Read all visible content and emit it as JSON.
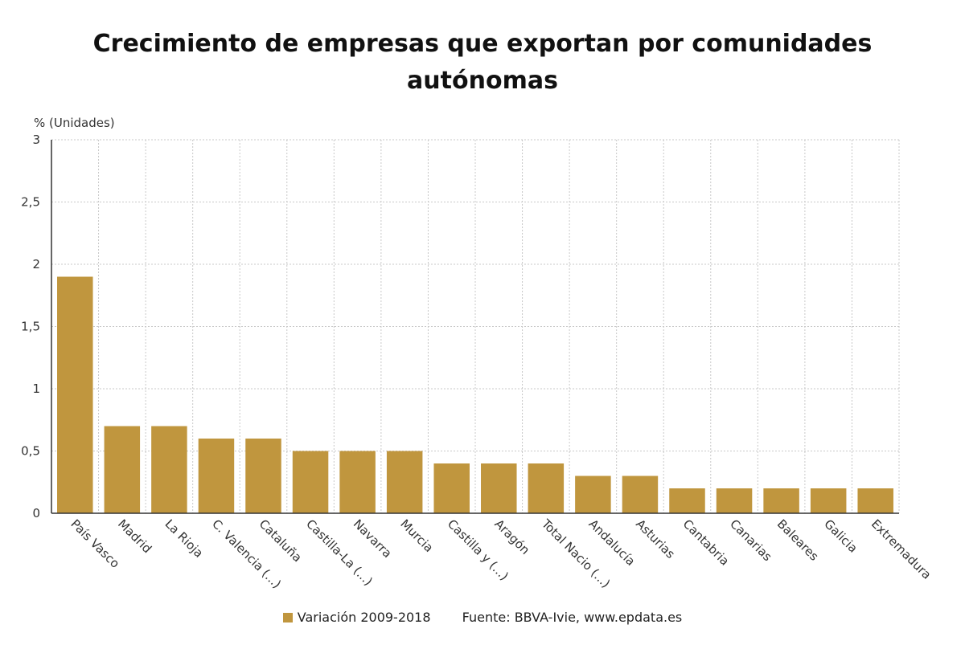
{
  "chart_data": {
    "type": "bar",
    "title_lines": [
      "Crecimiento de empresas que exportan por comunidades",
      "autónomas"
    ],
    "ylabel": "% (Unidades)",
    "xlabel": "",
    "ylim": [
      0,
      3
    ],
    "yticks": [
      0,
      0.5,
      1,
      1.5,
      2,
      2.5,
      3
    ],
    "ytick_labels": [
      "0",
      "0,5",
      "1",
      "1,5",
      "2",
      "2,5",
      "3"
    ],
    "grid": true,
    "categories": [
      "País Vasco",
      "Madrid",
      "La Rioja",
      "C. Valencia (...)",
      "Cataluña",
      "Castilla-La (...)",
      "Navarra",
      "Murcia",
      "Castilla y (...)",
      "Aragón",
      "Total Nacio (...)",
      "Andalucía",
      "Asturias",
      "Cantabria",
      "Canarias",
      "Baleares",
      "Galicia",
      "Extremadura"
    ],
    "series": [
      {
        "name": "Variación 2009-2018",
        "values": [
          1.9,
          0.7,
          0.7,
          0.6,
          0.6,
          0.5,
          0.5,
          0.5,
          0.4,
          0.4,
          0.4,
          0.3,
          0.3,
          0.2,
          0.2,
          0.2,
          0.2,
          0.2
        ]
      }
    ],
    "legend_position": "bottom",
    "source": "Fuente: BBVA-Ivie, www.epdata.es",
    "colors": {
      "bar": "#c0963e",
      "grid": "#c8c8c8",
      "axis": "#333333"
    }
  }
}
